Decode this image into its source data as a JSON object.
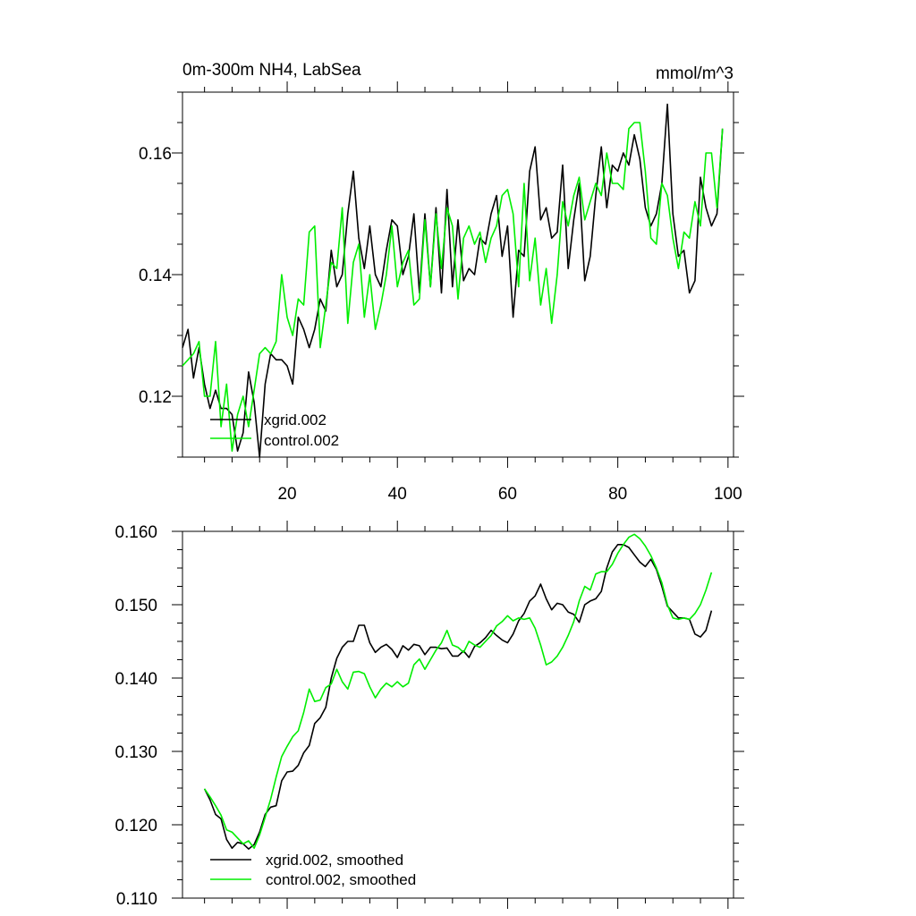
{
  "colors": {
    "xgrid": "#000000",
    "control": "#00ee00"
  },
  "chart_data": [
    {
      "type": "line",
      "title": "0m-300m NH4, LabSea",
      "units": "mmol/m^3",
      "xlim": [
        1,
        101
      ],
      "ylim": [
        0.11,
        0.17
      ],
      "xticks": [
        20,
        40,
        60,
        80,
        100
      ],
      "xtick_labels": [
        "20",
        "40",
        "60",
        "80",
        "100"
      ],
      "yticks": [
        0.12,
        0.14,
        0.16
      ],
      "ytick_labels": [
        "0.12",
        "0.14",
        "0.16"
      ],
      "legend": "bottom-left",
      "series": [
        {
          "name": "xgrid.002",
          "color": "#000000",
          "x_start": 1,
          "values": [
            0.128,
            0.131,
            0.123,
            0.128,
            0.122,
            0.118,
            0.121,
            0.118,
            0.118,
            0.117,
            0.111,
            0.114,
            0.124,
            0.119,
            0.11,
            0.122,
            0.127,
            0.126,
            0.126,
            0.125,
            0.122,
            0.133,
            0.131,
            0.128,
            0.131,
            0.136,
            0.134,
            0.144,
            0.138,
            0.14,
            0.15,
            0.157,
            0.146,
            0.141,
            0.148,
            0.14,
            0.138,
            0.144,
            0.149,
            0.148,
            0.14,
            0.143,
            0.15,
            0.137,
            0.15,
            0.138,
            0.151,
            0.137,
            0.154,
            0.138,
            0.149,
            0.139,
            0.141,
            0.14,
            0.146,
            0.145,
            0.15,
            0.153,
            0.143,
            0.148,
            0.133,
            0.144,
            0.143,
            0.157,
            0.161,
            0.149,
            0.151,
            0.146,
            0.147,
            0.158,
            0.141,
            0.149,
            0.155,
            0.139,
            0.143,
            0.153,
            0.161,
            0.151,
            0.158,
            0.157,
            0.16,
            0.158,
            0.163,
            0.159,
            0.151,
            0.148,
            0.15,
            0.155,
            0.168,
            0.15,
            0.143,
            0.144,
            0.137,
            0.139,
            0.156,
            0.151,
            0.148,
            0.15,
            0.164
          ]
        },
        {
          "name": "control.002",
          "color": "#00ee00",
          "x_start": 1,
          "values": [
            0.125,
            0.126,
            0.127,
            0.129,
            0.12,
            0.12,
            0.129,
            0.115,
            0.122,
            0.111,
            0.117,
            0.12,
            0.115,
            0.121,
            0.127,
            0.128,
            0.127,
            0.129,
            0.14,
            0.133,
            0.13,
            0.136,
            0.135,
            0.147,
            0.148,
            0.128,
            0.135,
            0.142,
            0.141,
            0.151,
            0.132,
            0.142,
            0.145,
            0.133,
            0.14,
            0.131,
            0.135,
            0.14,
            0.148,
            0.138,
            0.142,
            0.144,
            0.135,
            0.136,
            0.149,
            0.138,
            0.15,
            0.141,
            0.151,
            0.148,
            0.136,
            0.146,
            0.148,
            0.145,
            0.147,
            0.142,
            0.146,
            0.148,
            0.153,
            0.154,
            0.15,
            0.138,
            0.155,
            0.139,
            0.146,
            0.135,
            0.141,
            0.132,
            0.14,
            0.152,
            0.148,
            0.153,
            0.156,
            0.149,
            0.152,
            0.155,
            0.153,
            0.16,
            0.155,
            0.155,
            0.154,
            0.164,
            0.165,
            0.165,
            0.157,
            0.146,
            0.145,
            0.155,
            0.153,
            0.146,
            0.141,
            0.147,
            0.146,
            0.152,
            0.148,
            0.16,
            0.16,
            0.151,
            0.164
          ]
        }
      ]
    },
    {
      "type": "line",
      "xlim": [
        1,
        101
      ],
      "ylim": [
        0.11,
        0.16
      ],
      "xticks": [
        20,
        40,
        60,
        80,
        100
      ],
      "yticks": [
        0.11,
        0.12,
        0.13,
        0.14,
        0.15,
        0.16
      ],
      "ytick_labels": [
        "0.110",
        "0.120",
        "0.130",
        "0.140",
        "0.150",
        "0.160"
      ],
      "legend": "bottom-left",
      "series": [
        {
          "name": "xgrid.002, smoothed",
          "color": "#000000",
          "x_start": 5,
          "values": [
            0.1249,
            0.1234,
            0.1214,
            0.1208,
            0.118,
            0.1168,
            0.1176,
            0.1174,
            0.1167,
            0.1173,
            0.119,
            0.1214,
            0.1224,
            0.1226,
            0.126,
            0.1272,
            0.1273,
            0.1281,
            0.1298,
            0.1308,
            0.1338,
            0.1346,
            0.136,
            0.14,
            0.1427,
            0.1442,
            0.145,
            0.145,
            0.1472,
            0.1472,
            0.1448,
            0.1435,
            0.1442,
            0.1446,
            0.1439,
            0.1428,
            0.1444,
            0.1438,
            0.1446,
            0.1444,
            0.1432,
            0.1442,
            0.1442,
            0.144,
            0.1441,
            0.143,
            0.143,
            0.1437,
            0.1428,
            0.1443,
            0.1448,
            0.1455,
            0.1465,
            0.1458,
            0.1452,
            0.1448,
            0.146,
            0.1478,
            0.1488,
            0.1505,
            0.1512,
            0.1528,
            0.1508,
            0.1493,
            0.1502,
            0.15,
            0.149,
            0.1487,
            0.1476,
            0.15,
            0.1505,
            0.1508,
            0.1518,
            0.155,
            0.1572,
            0.1582,
            0.1582,
            0.1578,
            0.1568,
            0.1558,
            0.1552,
            0.1562,
            0.1548,
            0.1525,
            0.1498,
            0.149,
            0.1482,
            0.1482,
            0.148,
            0.146,
            0.1456,
            0.1465,
            0.1492
          ]
        },
        {
          "name": "control.002, smoothed",
          "color": "#00ee00",
          "x_start": 5,
          "values": [
            0.1249,
            0.1238,
            0.1226,
            0.1213,
            0.1193,
            0.119,
            0.1182,
            0.1174,
            0.1178,
            0.1168,
            0.1186,
            0.121,
            0.1235,
            0.1265,
            0.1293,
            0.1307,
            0.132,
            0.1328,
            0.1353,
            0.1385,
            0.1368,
            0.137,
            0.1387,
            0.1392,
            0.1412,
            0.1395,
            0.1385,
            0.1408,
            0.1409,
            0.1406,
            0.1388,
            0.1373,
            0.1385,
            0.1393,
            0.1388,
            0.1395,
            0.1388,
            0.1393,
            0.1418,
            0.1426,
            0.1412,
            0.1425,
            0.1438,
            0.1448,
            0.1465,
            0.1445,
            0.1442,
            0.1435,
            0.145,
            0.1445,
            0.1442,
            0.145,
            0.1458,
            0.1471,
            0.1477,
            0.1485,
            0.1478,
            0.1482,
            0.148,
            0.1482,
            0.1468,
            0.1445,
            0.1418,
            0.1422,
            0.143,
            0.1442,
            0.1458,
            0.1477,
            0.1505,
            0.1525,
            0.152,
            0.1542,
            0.1545,
            0.1545,
            0.1555,
            0.157,
            0.1582,
            0.1592,
            0.1596,
            0.159,
            0.158,
            0.1567,
            0.155,
            0.153,
            0.15,
            0.1482,
            0.148,
            0.1482,
            0.148,
            0.1488,
            0.15,
            0.152,
            0.1544
          ]
        }
      ]
    }
  ]
}
